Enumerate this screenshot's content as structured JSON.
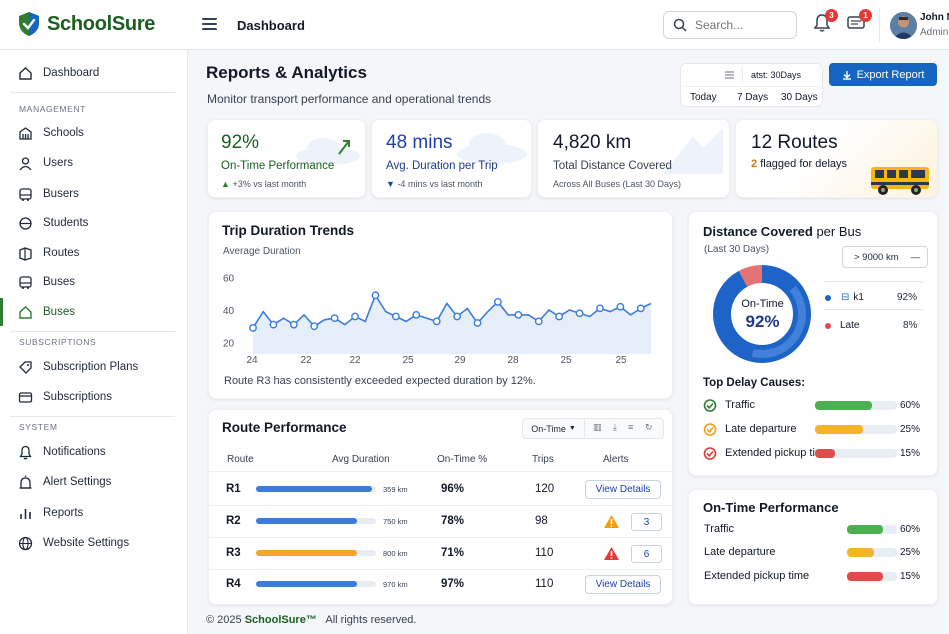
{
  "app": {
    "brand": "SchoolSure"
  },
  "header": {
    "title": "Dashboard",
    "search_placeholder": "Search...",
    "notif_count": "3",
    "msg_count": "1",
    "user_name": "John M",
    "user_role": "Admin"
  },
  "sidebar": {
    "dashboard": "Dashboard",
    "sections": {
      "management": "MANAGEMENT",
      "subscriptions": "SUBSCRIPTIONS",
      "system": "SYSTEM"
    },
    "management": [
      {
        "label": "Schools",
        "icon": "building-icon"
      },
      {
        "label": "Users",
        "icon": "user-icon"
      },
      {
        "label": "Busers",
        "icon": "bus-icon"
      },
      {
        "label": "Students",
        "icon": "student-icon"
      },
      {
        "label": "Routes",
        "icon": "route-icon"
      },
      {
        "label": "Buses",
        "icon": "bus-icon"
      },
      {
        "label": "Buses",
        "icon": "home-icon",
        "active": true
      }
    ],
    "subscriptions": [
      {
        "label": "Subscription Plans",
        "icon": "tag-icon"
      },
      {
        "label": "Subscriptions",
        "icon": "card-icon"
      }
    ],
    "system": [
      {
        "label": "Notifications",
        "icon": "bell-icon"
      },
      {
        "label": "Alert Settings",
        "icon": "alarm-icon"
      },
      {
        "label": "Reports",
        "icon": "bars-icon"
      },
      {
        "label": "Website Settings",
        "icon": "globe-icon"
      }
    ]
  },
  "page": {
    "title": "Reports & Analytics",
    "subtitle": "Monitor transport performance and operational trends",
    "date_filter": {
      "top_label": "atst: 30Days",
      "options": [
        "Today",
        "7 Days",
        "30 Days"
      ]
    },
    "export_label": "Export Report"
  },
  "stats": [
    {
      "value": "92%",
      "label": "On-Time Performance",
      "sub": "+3% vs last month",
      "trend": "up"
    },
    {
      "value": "48 mins",
      "label": "Avg. Duration per Trip",
      "sub": "-4 mins vs last month",
      "trend": "down"
    },
    {
      "value": "4,820 km",
      "label": "Total Distance Covered",
      "sub": "Across All Buses (Last 30 Days)"
    },
    {
      "value": "12 Routes",
      "count": "2",
      "label": "flagged for delays"
    }
  ],
  "trip_chart": {
    "title": "Trip Duration Trends",
    "subtitle": "Average Duration",
    "note": "Route R3 has consistently exceeded expected duration by 12%."
  },
  "chart_data": {
    "type": "line",
    "title": "Trip Duration Trends",
    "ylabel": "Average Duration",
    "x_ticks": [
      "24",
      "22",
      "22",
      "25",
      "29",
      "28",
      "25",
      "25"
    ],
    "y_ticks": [
      20,
      40,
      60
    ],
    "ylim": [
      13,
      67
    ],
    "series": [
      {
        "values": [
          29,
          39,
          31,
          35,
          31,
          37,
          30,
          34,
          35,
          31,
          36,
          33,
          49,
          39,
          36,
          33,
          37,
          35,
          33,
          44,
          36,
          41,
          32,
          39,
          45,
          37,
          37,
          37,
          33,
          40,
          36,
          40,
          38,
          36,
          41,
          39,
          42,
          37,
          41,
          44
        ]
      }
    ],
    "grid": false,
    "area_fill": true
  },
  "route_perf": {
    "title": "Route Performance",
    "filter_label": "On-Time",
    "columns": [
      "Route",
      "Avg Duration",
      "On-Time %",
      "Trips",
      "Alerts"
    ],
    "rows": [
      {
        "route": "R1",
        "dist": "359 km",
        "fill": 0.97,
        "color": "#3b7dd8",
        "ontime": "96%",
        "trips": "120",
        "alert_type": "button",
        "alert": "View Details"
      },
      {
        "route": "R2",
        "dist": "750 km",
        "fill": 0.84,
        "color": "#3b7dd8",
        "ontime": "78%",
        "trips": "98",
        "alert_type": "warn",
        "alert": "3"
      },
      {
        "route": "R3",
        "dist": "800 km",
        "fill": 0.84,
        "color": "#f4a62a",
        "ontime": "71%",
        "trips": "110",
        "alert_type": "danger",
        "alert": "6"
      },
      {
        "route": "R4",
        "dist": "970 km",
        "fill": 0.84,
        "color": "#3b7dd8",
        "ontime": "97%",
        "trips": "110",
        "alert_type": "button",
        "alert": "View Details"
      }
    ]
  },
  "distance": {
    "title_a": "Distance Covered",
    "title_b": "per Bus",
    "subtitle": "(Last 30 Days)",
    "dropdown": "> 9000 km",
    "donut_label": "On-Time",
    "donut_value": "92%",
    "legend": [
      {
        "label": "k1",
        "value": "92%",
        "color": "#1e63c7"
      },
      {
        "label": "Late",
        "value": "8%",
        "color": "#e57373"
      }
    ],
    "causes_title": "Top Delay Causes:",
    "causes": [
      {
        "label": "Traffic",
        "pct": "60%",
        "frac": 0.6,
        "color": "#4caf50",
        "icon": "check-icon"
      },
      {
        "label": "Late departure",
        "pct": "25%",
        "frac": 0.25,
        "color": "#f4b42a",
        "icon": "clock-icon"
      },
      {
        "label": "Extended pickup time",
        "pct": "15%",
        "frac": 0.15,
        "color": "#e04b4b",
        "icon": "pickup-icon"
      }
    ]
  },
  "ontime_card": {
    "title": "On-Time Performance",
    "rows": [
      {
        "label": "Traffic",
        "pct": "60%",
        "frac": 0.6,
        "color": "#4caf50"
      },
      {
        "label": "Late departure",
        "pct": "25%",
        "frac": 0.25,
        "color": "#f4b42a"
      },
      {
        "label": "Extended pickup time",
        "pct": "15%",
        "frac": 0.15,
        "color": "#e04b4b"
      }
    ]
  },
  "footer": {
    "copy": "© 2025",
    "brand": "SchoolSure™",
    "rights": "All rights reserved."
  }
}
